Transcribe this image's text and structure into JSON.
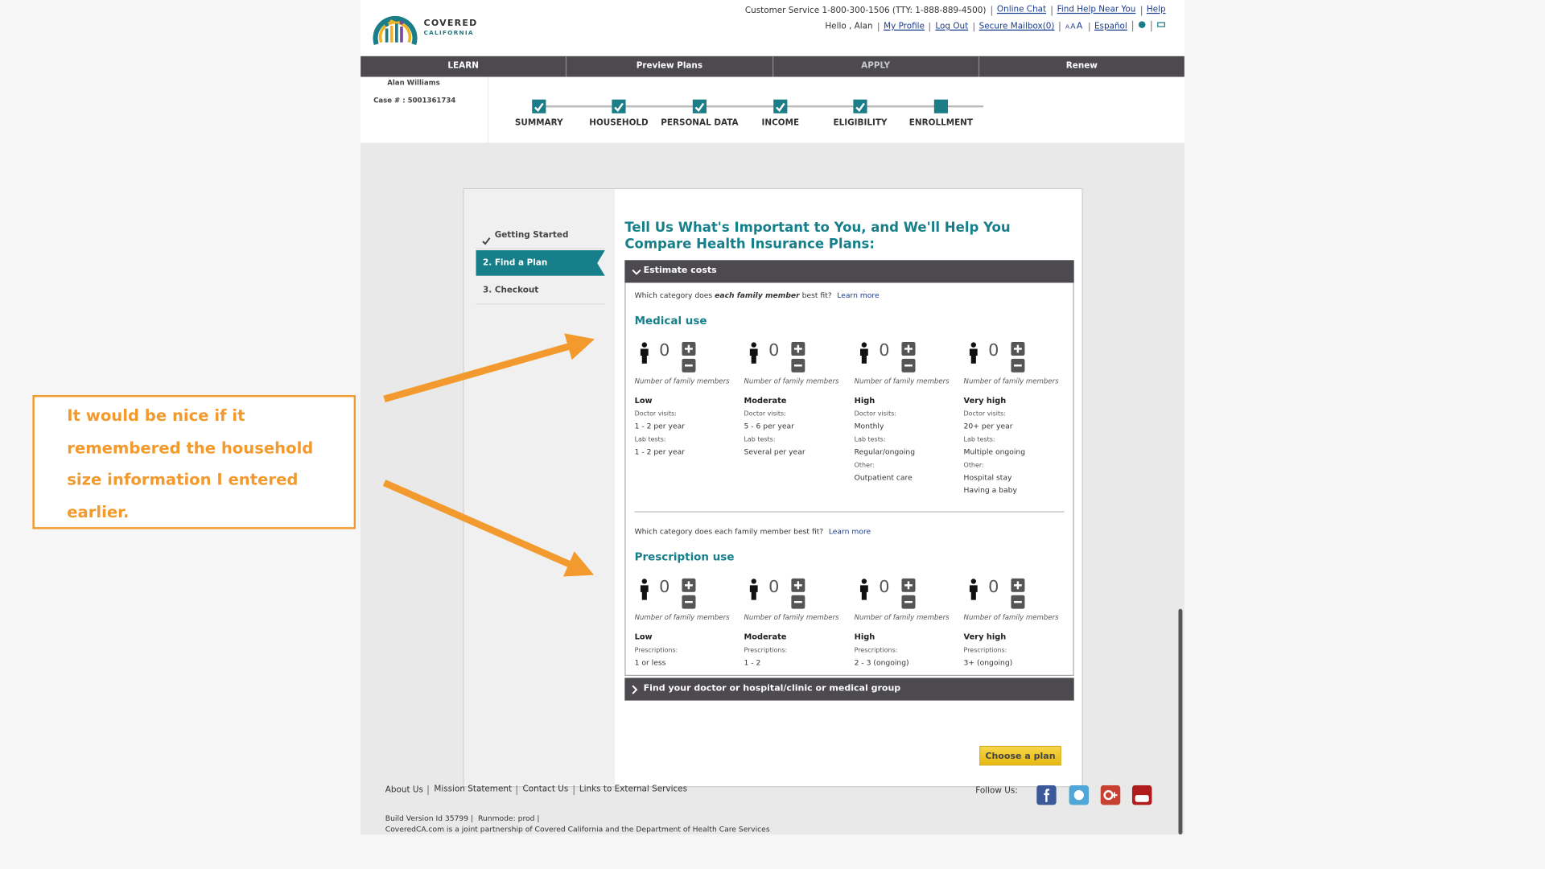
{
  "header": {
    "logo": {
      "line1": "COVERED",
      "line2": "CALIFORNIA"
    },
    "customer_service": "Customer Service 1-800-300-1506 (TTY: 1-888-889-4500)",
    "top_links": [
      "Online Chat",
      "Find Help Near You",
      "Help"
    ],
    "greeting": "Hello , Alan",
    "account_links": [
      "My Profile",
      "Log Out",
      "Secure Mailbox(0)"
    ],
    "text_sizes": [
      "A",
      "A",
      "A"
    ],
    "language": "Español"
  },
  "nav": [
    "LEARN",
    "Preview Plans",
    "APPLY",
    "Renew"
  ],
  "user": {
    "name": "Alan Williams",
    "case": "Case # : 5001361734"
  },
  "steps": [
    "SUMMARY",
    "HOUSEHOLD",
    "PERSONAL DATA",
    "INCOME",
    "ELIGIBILITY",
    "ENROLLMENT"
  ],
  "sidebar": [
    "Getting Started",
    "2. Find a Plan",
    "3. Checkout"
  ],
  "heading": "Tell Us What's Important to You, and We'll Help You Compare Health Insurance Plans:",
  "estimate": {
    "title": "Estimate costs",
    "medical": {
      "prompt": {
        "before": "Which category does ",
        "emphasis": "each family member",
        "after": " best fit?",
        "link": "Learn more"
      },
      "title": "Medical use",
      "categories": [
        {
          "count": 0,
          "caption": "Number of family members",
          "name": "Low",
          "details": [
            {
              "label": "Doctor visits:",
              "items": [
                "1 - 2 per year"
              ]
            },
            {
              "label": "Lab tests:",
              "items": [
                "1 - 2 per year"
              ]
            }
          ]
        },
        {
          "count": 0,
          "caption": "Number of family members",
          "name": "Moderate",
          "details": [
            {
              "label": "Doctor visits:",
              "items": [
                "5 - 6 per year"
              ]
            },
            {
              "label": "Lab tests:",
              "items": [
                "Several per year"
              ]
            }
          ]
        },
        {
          "count": 0,
          "caption": "Number of family members",
          "name": "High",
          "details": [
            {
              "label": "Doctor visits:",
              "items": [
                "Monthly"
              ]
            },
            {
              "label": "Lab tests:",
              "items": [
                "Regular/ongoing"
              ]
            },
            {
              "label": "Other:",
              "items": [
                "Outpatient care"
              ]
            }
          ]
        },
        {
          "count": 0,
          "caption": "Number of family members",
          "name": "Very high",
          "details": [
            {
              "label": "Doctor visits:",
              "items": [
                "20+ per year"
              ]
            },
            {
              "label": "Lab tests:",
              "items": [
                "Multiple ongoing"
              ]
            },
            {
              "label": "Other:",
              "items": [
                "Hospital stay",
                "Having a baby"
              ]
            }
          ]
        }
      ]
    },
    "prescription": {
      "prompt": {
        "text": "Which category does each family member best fit?",
        "link": "Learn more"
      },
      "title": "Prescription use",
      "categories": [
        {
          "count": 0,
          "caption": "Number of family members",
          "name": "Low",
          "details": [
            {
              "label": "Prescriptions:",
              "items": [
                "1 or less"
              ]
            }
          ]
        },
        {
          "count": 0,
          "caption": "Number of family members",
          "name": "Moderate",
          "details": [
            {
              "label": "Prescriptions:",
              "items": [
                "1 - 2"
              ]
            }
          ]
        },
        {
          "count": 0,
          "caption": "Number of family members",
          "name": "High",
          "details": [
            {
              "label": "Prescriptions:",
              "items": [
                "2 - 3 (ongoing)"
              ]
            }
          ]
        },
        {
          "count": 0,
          "caption": "Number of family members",
          "name": "Very high",
          "details": [
            {
              "label": "Prescriptions:",
              "items": [
                "3+ (ongoing)"
              ]
            }
          ]
        }
      ]
    }
  },
  "find_doctor": "Find your doctor or hospital/clinic or medical group",
  "button": "Choose a plan",
  "footer": {
    "links": [
      "About Us",
      "Mission Statement",
      "Contact Us",
      "Links to External Services"
    ],
    "follow": "Follow Us:",
    "build": "Build Version Id 35799 |  Runmode: prod |",
    "partnership": "CoveredCA.com is a joint partnership of Covered California and the Department of Health Care Services"
  },
  "annotation": "It would be nice if it remembered the household size information I entered earlier."
}
